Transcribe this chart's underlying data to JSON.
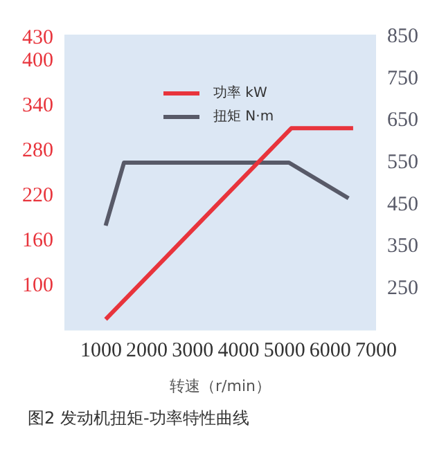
{
  "chart_data": {
    "type": "line",
    "xlabel": "转速（r/min）",
    "annotations": [
      "图2 发动机扭矩-功率特性曲线"
    ],
    "xlim": [
      200,
      7000
    ],
    "xticks": [
      1000,
      2000,
      3000,
      4000,
      5000,
      6000,
      7000
    ],
    "ylim": [
      40,
      435
    ],
    "yticks": [
      100,
      160,
      220,
      280,
      340,
      400,
      430
    ],
    "y2lim": [
      150,
      855
    ],
    "y2ticks": [
      250,
      350,
      450,
      550,
      650,
      750,
      850
    ],
    "legend": "top",
    "grid": false,
    "marker": "none",
    "line_style": "solid",
    "series": [
      {
        "name": "功率 kW",
        "color": "#e8343c",
        "x": [
          1100,
          5150,
          6500
        ],
        "values": [
          55,
          310,
          310
        ]
      },
      {
        "name": "扭矩 N·m",
        "color": "#585a68",
        "axis": "y2",
        "x": [
          1100,
          1500,
          5100,
          6400
        ],
        "values": [
          400,
          550,
          550,
          465
        ]
      }
    ]
  }
}
